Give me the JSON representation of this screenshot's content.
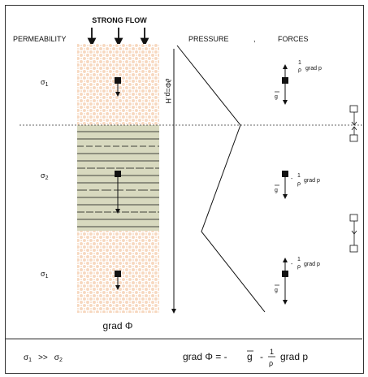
{
  "header": {
    "strong_flow": "STRONG FLOW",
    "permeability": "PERMEABILITY",
    "pressure": "PRESSURE",
    "forces": "FORCES"
  },
  "layers": {
    "top_sigma": "σ",
    "top_sub": "1",
    "mid_sigma": "σ",
    "mid_sub": "2",
    "bot_sigma": "σ",
    "bot_sub": "1"
  },
  "column": {
    "depth_label": "∂Φ=p.H",
    "grad_label": "grad Φ"
  },
  "forces": {
    "top_num": "1",
    "top_den": "ρ",
    "top_text": "grad p",
    "g_label": "g",
    "mid_minus": "-",
    "mid_num": "1",
    "mid_den": "ρ",
    "mid_text": "grad p",
    "bot_minus": "-",
    "bot_num": "1",
    "bot_den": "ρ",
    "bot_text": "grad p"
  },
  "footer": {
    "relation_left": "σ",
    "relation_left_sub": "1",
    "relation_op": ">>",
    "relation_right": "σ",
    "relation_right_sub": "2",
    "equation_lhs": "grad Φ = -",
    "equation_g": "g",
    "equation_minus": "-",
    "equation_num": "1",
    "equation_den": "ρ",
    "equation_tail": "grad p"
  },
  "colors": {
    "sand": "#f7d8bf",
    "clay": "#d8d9bf",
    "ink": "#111111"
  }
}
